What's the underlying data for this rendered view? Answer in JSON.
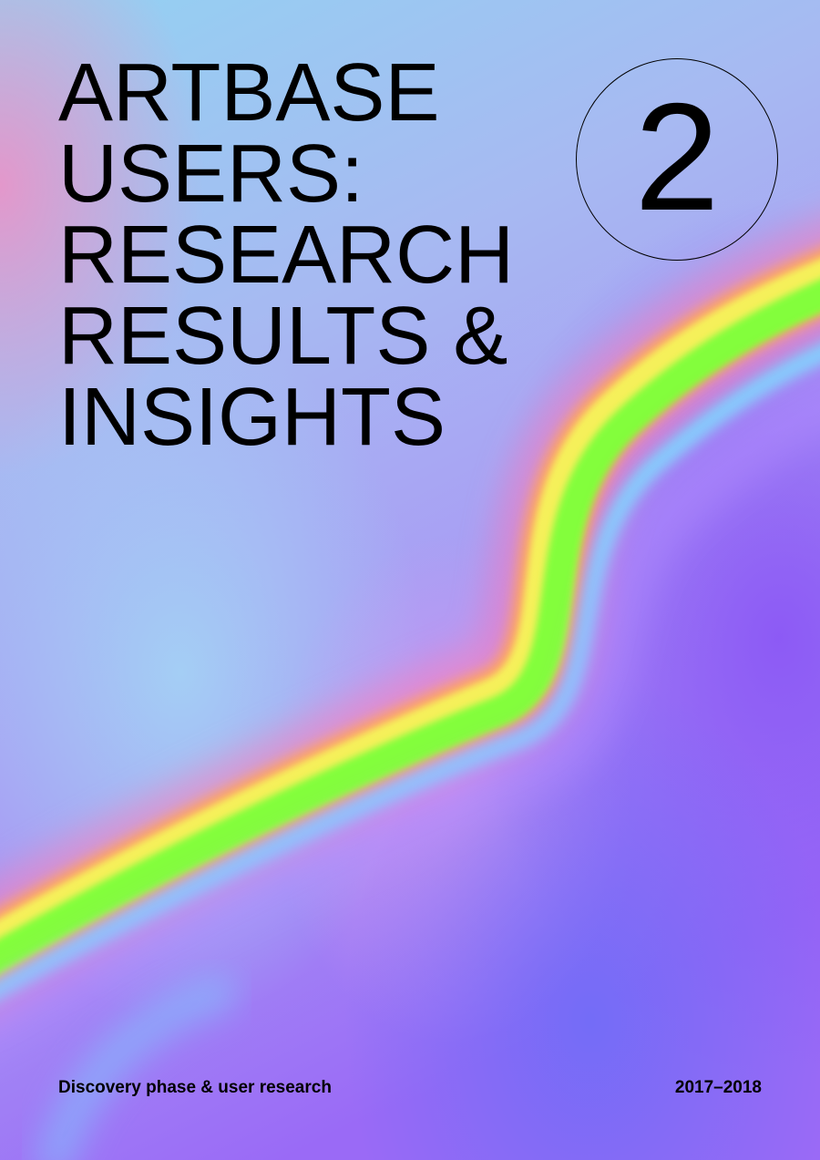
{
  "cover": {
    "title_lines": [
      "ARTBASE",
      "USERS:",
      "RESEARCH",
      "RESULTS &",
      "INSIGHTS"
    ],
    "issue_number": "2",
    "subtitle": "Discovery phase & user research",
    "years": "2017–2018"
  },
  "colors": {
    "background_top": "#8fd3f2",
    "background_bottom": "#9a6cf6",
    "accent_pink": "#e89ad9",
    "accent_purple": "#8b5cf6",
    "rainbow_red": "#ff5d8a",
    "rainbow_orange": "#ffb35c",
    "rainbow_yellow": "#f6f55a",
    "rainbow_green": "#7dff3b",
    "rainbow_cyan": "#7fd7ff",
    "text": "#000000"
  }
}
